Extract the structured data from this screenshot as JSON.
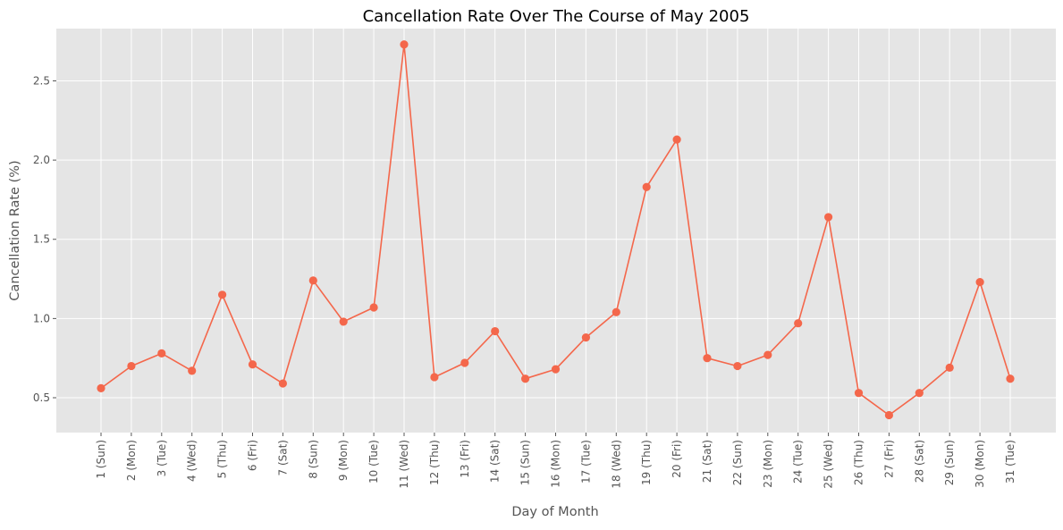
{
  "chart_data": {
    "type": "line",
    "title": "Cancellation Rate Over The Course of May 2005",
    "xlabel": "Day of Month",
    "ylabel": "Cancellation Rate (%)",
    "categories": [
      "1 (Sun)",
      "2 (Mon)",
      "3 (Tue)",
      "4 (Wed)",
      "5 (Thu)",
      "6 (Fri)",
      "7 (Sat)",
      "8 (Sun)",
      "9 (Mon)",
      "10 (Tue)",
      "11 (Wed)",
      "12 (Thu)",
      "13 (Fri)",
      "14 (Sat)",
      "15 (Sun)",
      "16 (Mon)",
      "17 (Tue)",
      "18 (Wed)",
      "19 (Thu)",
      "20 (Fri)",
      "21 (Sat)",
      "22 (Sun)",
      "23 (Mon)",
      "24 (Tue)",
      "25 (Wed)",
      "26 (Thu)",
      "27 (Fri)",
      "28 (Sat)",
      "29 (Sun)",
      "30 (Mon)",
      "31 (Tue)"
    ],
    "series": [
      {
        "values": [
          0.56,
          0.7,
          0.78,
          0.67,
          1.15,
          0.71,
          0.59,
          1.24,
          0.98,
          1.07,
          2.73,
          0.63,
          0.72,
          0.92,
          0.62,
          0.68,
          0.88,
          1.04,
          1.83,
          2.13,
          0.75,
          0.7,
          0.77,
          0.97,
          1.64,
          0.53,
          0.39,
          0.53,
          0.69,
          1.23,
          0.62
        ],
        "color": "#f4674b",
        "marker": "circle"
      }
    ],
    "yticks": [
      "0.5",
      "1.0",
      "1.5",
      "2.0",
      "2.5"
    ],
    "ylim": [
      0.28,
      2.83
    ],
    "grid": true,
    "style": "ggplot",
    "background": "#e5e5e5",
    "legend": "none"
  }
}
